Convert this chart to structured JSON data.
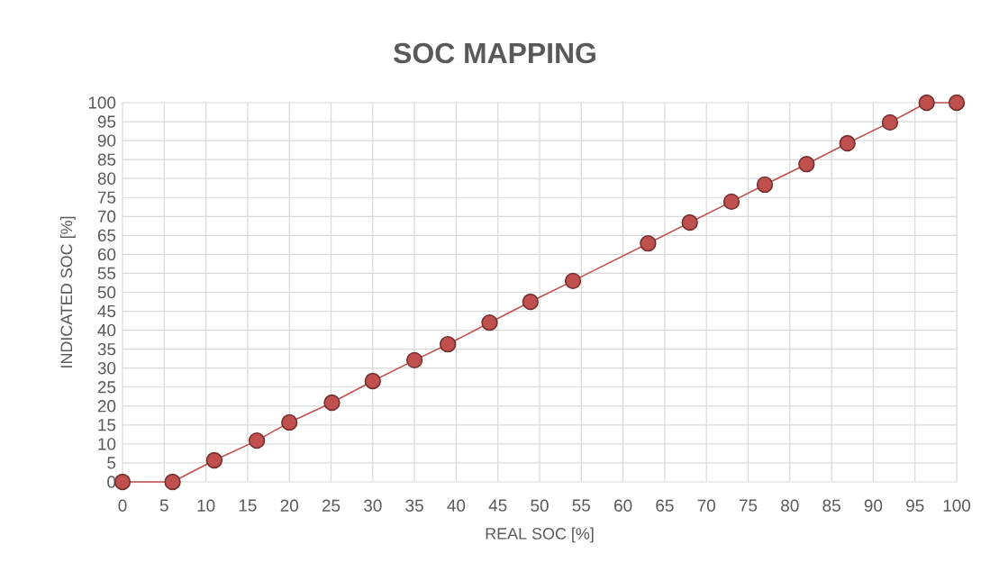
{
  "chart_data": {
    "type": "line",
    "title": "SOC MAPPING",
    "xlabel": "REAL SOC [%]",
    "ylabel": "INDICATED SOC [%]",
    "series": [
      {
        "color": "#c0504d",
        "x": [
          0,
          6,
          11,
          16.1,
          20,
          25.1,
          30,
          35,
          39,
          44,
          48.9,
          54,
          63,
          68,
          73,
          77,
          82,
          86.9,
          92,
          96.4,
          100
        ],
        "values": [
          0,
          0,
          5.7,
          10.9,
          15.7,
          20.9,
          26.6,
          32.1,
          36.3,
          42,
          47.5,
          53,
          62.9,
          68.4,
          73.9,
          78.4,
          83.8,
          89.3,
          94.8,
          100,
          100
        ]
      }
    ],
    "xlim": [
      0,
      100
    ],
    "ylim": [
      0,
      100
    ],
    "xticks": [
      0,
      5,
      10,
      15,
      20,
      25,
      30,
      35,
      40,
      45,
      50,
      55,
      60,
      65,
      70,
      75,
      80,
      85,
      90,
      95,
      100
    ],
    "yticks": [
      0,
      5,
      10,
      15,
      20,
      25,
      30,
      35,
      40,
      45,
      50,
      55,
      60,
      65,
      70,
      75,
      80,
      85,
      90,
      95,
      100
    ],
    "grid": true,
    "marker": "circle",
    "line_style": "solid",
    "legend": false
  }
}
